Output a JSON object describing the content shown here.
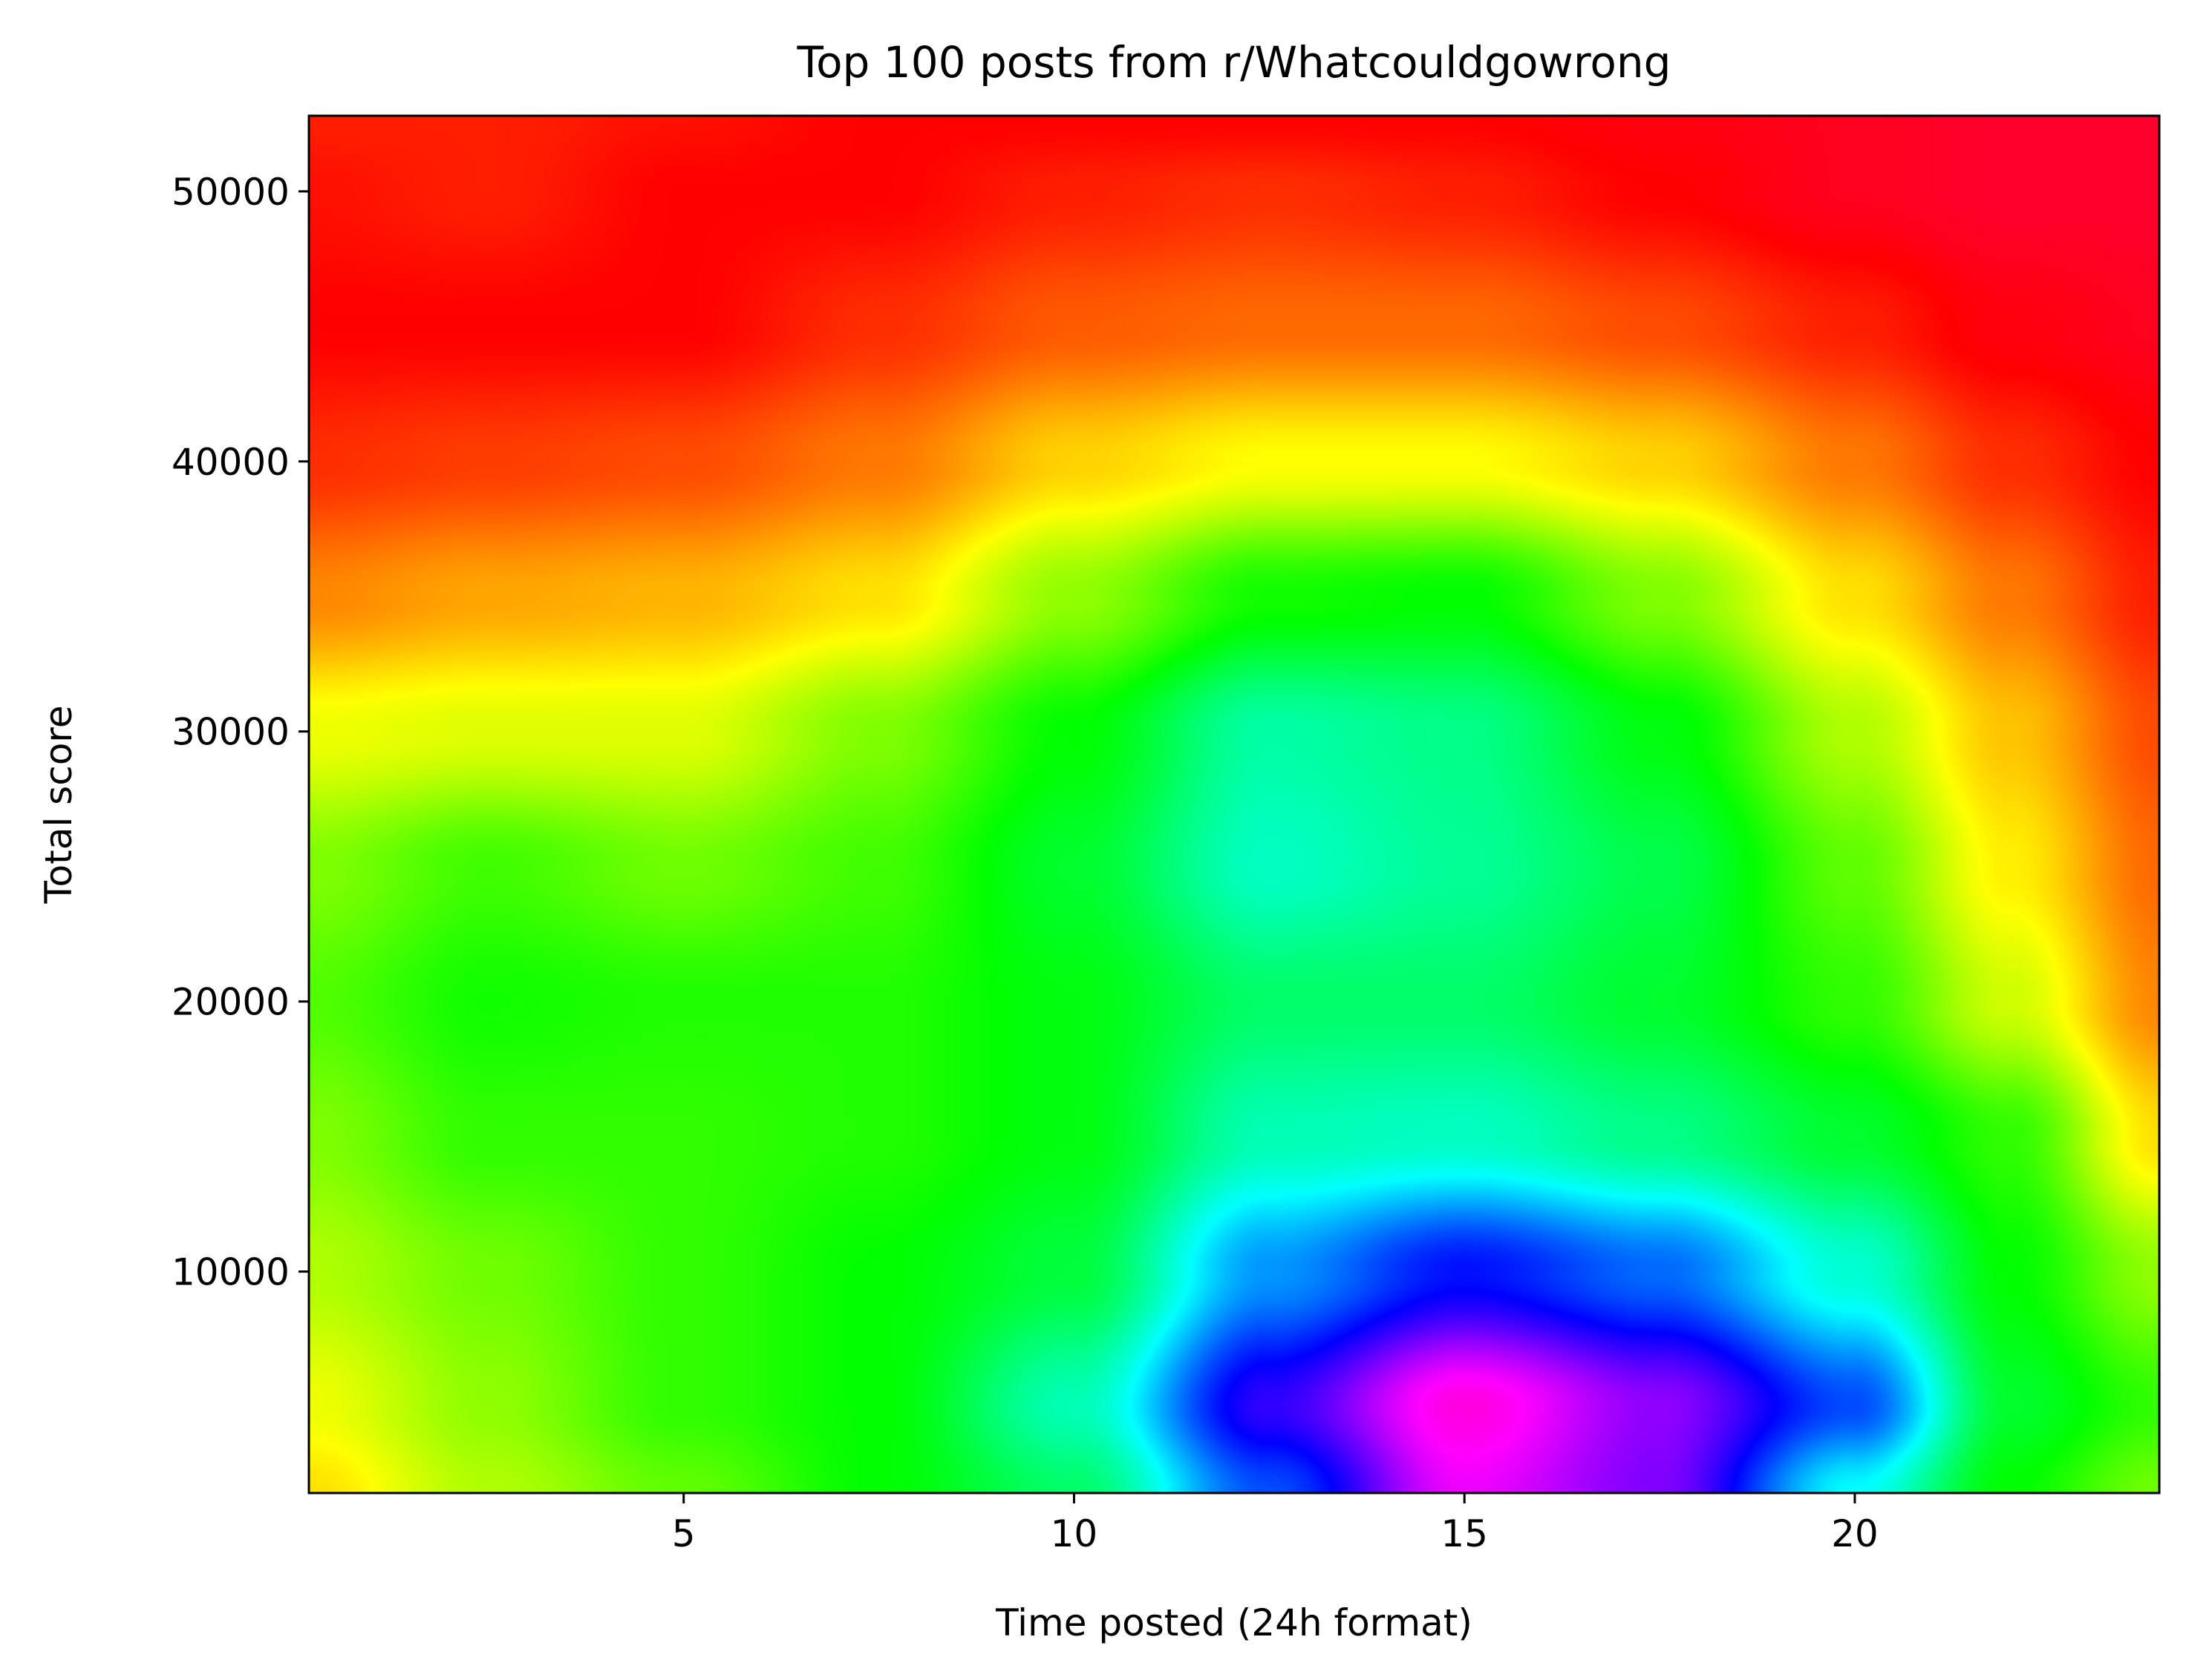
{
  "chart_data": {
    "type": "heatmap",
    "title": "Top 100 posts from r/Whatcouldgowrong",
    "xlabel": "Time posted (24h format)",
    "ylabel": "Total score",
    "xlim": [
      0.2,
      23.9
    ],
    "ylim": [
      1800,
      52800
    ],
    "xticks": [
      5,
      10,
      15,
      20
    ],
    "xtick_labels": [
      "5",
      "10",
      "15",
      "20"
    ],
    "yticks": [
      10000,
      20000,
      30000,
      40000,
      50000
    ],
    "ytick_labels": [
      "10000",
      "20000",
      "30000",
      "40000",
      "50000"
    ],
    "grid": false,
    "colormap": "hsv",
    "colormap_stops": [
      {
        "v": 0.0,
        "color": "#ff0000"
      },
      {
        "v": 0.17,
        "color": "#ffff00"
      },
      {
        "v": 0.33,
        "color": "#00ff00"
      },
      {
        "v": 0.5,
        "color": "#00ffff"
      },
      {
        "v": 0.67,
        "color": "#0000ff"
      },
      {
        "v": 0.83,
        "color": "#ff00ff"
      },
      {
        "v": 1.0,
        "color": "#ff0000"
      }
    ],
    "field": {
      "x": [
        0.2,
        2.5,
        5,
        7.5,
        10,
        12.5,
        15,
        17.5,
        20,
        22,
        23.9
      ],
      "y": [
        1800,
        5000,
        10000,
        15000,
        20000,
        25000,
        30000,
        35000,
        40000,
        45000,
        50000,
        52800
      ],
      "z": [
        [
          0.15,
          0.22,
          0.27,
          0.33,
          0.4,
          0.62,
          0.82,
          0.75,
          0.5,
          0.33,
          0.26
        ],
        [
          0.18,
          0.24,
          0.3,
          0.33,
          0.45,
          0.7,
          0.85,
          0.76,
          0.62,
          0.36,
          0.3
        ],
        [
          0.22,
          0.26,
          0.3,
          0.33,
          0.37,
          0.57,
          0.66,
          0.6,
          0.47,
          0.33,
          0.24
        ],
        [
          0.25,
          0.3,
          0.3,
          0.31,
          0.34,
          0.45,
          0.46,
          0.42,
          0.36,
          0.3,
          0.15
        ],
        [
          0.28,
          0.32,
          0.31,
          0.31,
          0.34,
          0.4,
          0.4,
          0.36,
          0.3,
          0.2,
          0.09
        ],
        [
          0.25,
          0.29,
          0.26,
          0.29,
          0.36,
          0.46,
          0.43,
          0.38,
          0.27,
          0.16,
          0.07
        ],
        [
          0.18,
          0.19,
          0.19,
          0.25,
          0.33,
          0.44,
          0.42,
          0.34,
          0.22,
          0.13,
          0.05
        ],
        [
          0.09,
          0.11,
          0.12,
          0.15,
          0.24,
          0.32,
          0.33,
          0.25,
          0.15,
          0.08,
          0.02
        ],
        [
          0.03,
          0.04,
          0.05,
          0.08,
          0.14,
          0.17,
          0.17,
          0.14,
          0.08,
          0.03,
          0.0
        ],
        [
          0.0,
          0.0,
          0.0,
          0.03,
          0.06,
          0.07,
          0.07,
          0.05,
          0.02,
          0.99,
          0.98
        ],
        [
          0.01,
          0.02,
          0.0,
          0.0,
          0.02,
          0.03,
          0.02,
          0.0,
          0.98,
          0.97,
          0.97
        ],
        [
          0.02,
          0.02,
          0.01,
          0.0,
          0.0,
          0.0,
          0.0,
          0.99,
          0.98,
          0.97,
          0.97
        ]
      ]
    }
  }
}
